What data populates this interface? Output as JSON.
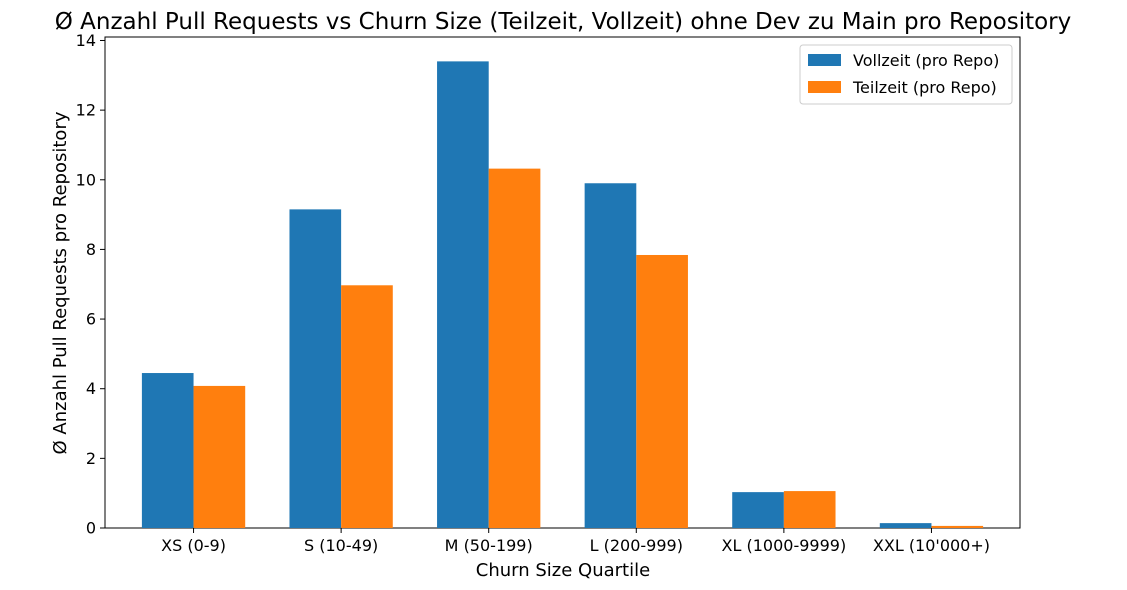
{
  "chart_data": {
    "type": "bar",
    "title": "Ø Anzahl Pull Requests vs Churn Size (Teilzeit, Vollzeit) ohne Dev zu Main pro Repository",
    "xlabel": "Churn Size Quartile",
    "ylabel": "Ø Anzahl Pull Requests pro Repository",
    "categories": [
      "XS (0-9)",
      "S (10-49)",
      "M (50-199)",
      "L (200-999)",
      "XL (1000-9999)",
      "XXL (10'000+)"
    ],
    "series": [
      {
        "name": "Vollzeit (pro Repo)",
        "color": "#1f77b4",
        "values": [
          4.45,
          9.15,
          13.4,
          9.9,
          1.03,
          0.14
        ]
      },
      {
        "name": "Teilzeit (pro Repo)",
        "color": "#ff7f0e",
        "values": [
          4.08,
          6.97,
          10.32,
          7.84,
          1.06,
          0.06
        ]
      }
    ],
    "ylim": [
      0,
      14.1
    ],
    "yticks": [
      0,
      2,
      4,
      6,
      8,
      10,
      12,
      14
    ],
    "grid": false,
    "legend_position": "top-right"
  }
}
